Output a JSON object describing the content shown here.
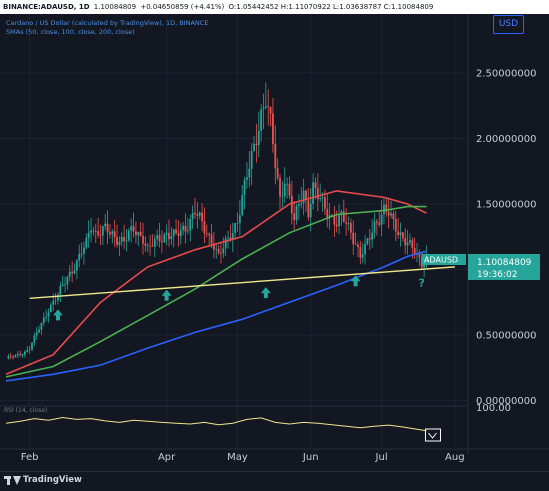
{
  "header": {
    "symbol": "BINANCE:ADAUSD, 1D",
    "last": "1.10084809",
    "change": "+0.04650859 (+4.41%)",
    "ohlc": "O:1.05442452 H:1.11070922 L:1.03638787 C:1.10084809",
    "title": "Cardano / US Dollar (calculated by TradingView), 1D, BINANCE",
    "indicator": "SMAs (50, close, 100, close, 200, close)"
  },
  "currency_button": "USD",
  "price_label": {
    "symbol": "ADAUSD",
    "value": "1.10084809",
    "countdown": "19:36:02"
  },
  "rsi_label": "RSI (14, close)",
  "rsi_top_tick": "100.00",
  "footer": {
    "brand": "TradingView"
  },
  "annotation": {
    "question": "?"
  },
  "colors": {
    "up": "#26a69a",
    "down": "#ef5350",
    "sma50": "#e84b4b",
    "sma100": "#4caf50",
    "sma200": "#2962ff",
    "trendline": "#f0e68c",
    "arrow": "#26a69a",
    "rsi": "#f0e68c"
  },
  "chart_data": {
    "type": "candlestick",
    "xlabel": "",
    "ylabel": "",
    "ylim": [
      -0.08,
      2.95
    ],
    "y_ticks": [
      0.0,
      0.5,
      1.0,
      1.5,
      2.0,
      2.5
    ],
    "y_tick_labels": [
      "0.00000000",
      "0.50000000",
      "1.00000000",
      "1.50000000",
      "2.00000000",
      "2.50000000"
    ],
    "x_ticks": [
      {
        "label": "Feb",
        "day": 10
      },
      {
        "label": "Apr",
        "day": 68
      },
      {
        "label": "May",
        "day": 98
      },
      {
        "label": "Jun",
        "day": 129
      },
      {
        "label": "Jul",
        "day": 159
      },
      {
        "label": "Aug",
        "day": 190
      }
    ],
    "close_path": [
      [
        0,
        0.32
      ],
      [
        4,
        0.34
      ],
      [
        8,
        0.37
      ],
      [
        10,
        0.4
      ],
      [
        14,
        0.55
      ],
      [
        18,
        0.7
      ],
      [
        22,
        0.8
      ],
      [
        26,
        0.95
      ],
      [
        30,
        1.05
      ],
      [
        34,
        1.2
      ],
      [
        36,
        1.35
      ],
      [
        38,
        1.28
      ],
      [
        42,
        1.3
      ],
      [
        46,
        1.25
      ],
      [
        50,
        1.22
      ],
      [
        54,
        1.3
      ],
      [
        58,
        1.25
      ],
      [
        60,
        1.15
      ],
      [
        64,
        1.22
      ],
      [
        68,
        1.28
      ],
      [
        72,
        1.25
      ],
      [
        76,
        1.32
      ],
      [
        80,
        1.45
      ],
      [
        84,
        1.3
      ],
      [
        88,
        1.2
      ],
      [
        90,
        1.1
      ],
      [
        94,
        1.22
      ],
      [
        96,
        1.3
      ],
      [
        98,
        1.38
      ],
      [
        100,
        1.55
      ],
      [
        104,
        1.85
      ],
      [
        108,
        2.2
      ],
      [
        110,
        2.3
      ],
      [
        112,
        2.1
      ],
      [
        114,
        1.8
      ],
      [
        116,
        1.55
      ],
      [
        118,
        1.7
      ],
      [
        120,
        1.55
      ],
      [
        122,
        1.35
      ],
      [
        124,
        1.5
      ],
      [
        126,
        1.6
      ],
      [
        128,
        1.45
      ],
      [
        130,
        1.62
      ],
      [
        132,
        1.55
      ],
      [
        134,
        1.5
      ],
      [
        136,
        1.45
      ],
      [
        138,
        1.4
      ],
      [
        140,
        1.35
      ],
      [
        142,
        1.4
      ],
      [
        144,
        1.35
      ],
      [
        146,
        1.3
      ],
      [
        148,
        1.2
      ],
      [
        150,
        1.1
      ],
      [
        152,
        1.15
      ],
      [
        154,
        1.25
      ],
      [
        156,
        1.35
      ],
      [
        158,
        1.4
      ],
      [
        160,
        1.45
      ],
      [
        162,
        1.42
      ],
      [
        164,
        1.35
      ],
      [
        166,
        1.3
      ],
      [
        168,
        1.25
      ],
      [
        170,
        1.2
      ],
      [
        172,
        1.15
      ],
      [
        174,
        1.1
      ],
      [
        176,
        1.05
      ],
      [
        178,
        1.1
      ]
    ],
    "series": [
      {
        "name": "SMA 50",
        "values": [
          [
            0,
            0.2
          ],
          [
            20,
            0.35
          ],
          [
            40,
            0.75
          ],
          [
            60,
            1.02
          ],
          [
            80,
            1.15
          ],
          [
            100,
            1.25
          ],
          [
            120,
            1.5
          ],
          [
            140,
            1.6
          ],
          [
            160,
            1.55
          ],
          [
            170,
            1.5
          ],
          [
            178,
            1.43
          ]
        ]
      },
      {
        "name": "SMA 100",
        "values": [
          [
            0,
            0.18
          ],
          [
            20,
            0.26
          ],
          [
            40,
            0.45
          ],
          [
            60,
            0.65
          ],
          [
            80,
            0.85
          ],
          [
            100,
            1.08
          ],
          [
            120,
            1.28
          ],
          [
            140,
            1.42
          ],
          [
            160,
            1.45
          ],
          [
            170,
            1.48
          ],
          [
            178,
            1.48
          ]
        ]
      },
      {
        "name": "SMA 200",
        "values": [
          [
            0,
            0.15
          ],
          [
            20,
            0.2
          ],
          [
            40,
            0.27
          ],
          [
            60,
            0.4
          ],
          [
            80,
            0.52
          ],
          [
            100,
            0.62
          ],
          [
            120,
            0.75
          ],
          [
            140,
            0.88
          ],
          [
            160,
            1.02
          ],
          [
            170,
            1.1
          ],
          [
            178,
            1.14
          ]
        ]
      }
    ],
    "trendline": [
      [
        10,
        0.78
      ],
      [
        190,
        1.02
      ]
    ],
    "markers": [
      {
        "label": "arrow-up",
        "day": 22,
        "value": 0.65
      },
      {
        "label": "arrow-up",
        "day": 68,
        "value": 0.8
      },
      {
        "label": "arrow-up",
        "day": 110,
        "value": 0.82
      },
      {
        "label": "arrow-up",
        "day": 148,
        "value": 0.91
      },
      {
        "label": "question",
        "day": 176,
        "value": 0.9
      }
    ],
    "rsi": {
      "ylim": [
        0,
        100
      ],
      "top_tick": 100,
      "values": [
        [
          0,
          60
        ],
        [
          6,
          65
        ],
        [
          12,
          72
        ],
        [
          18,
          68
        ],
        [
          24,
          75
        ],
        [
          30,
          70
        ],
        [
          36,
          72
        ],
        [
          42,
          66
        ],
        [
          48,
          62
        ],
        [
          54,
          68
        ],
        [
          60,
          65
        ],
        [
          66,
          62
        ],
        [
          72,
          60
        ],
        [
          78,
          58
        ],
        [
          84,
          62
        ],
        [
          90,
          56
        ],
        [
          96,
          60
        ],
        [
          102,
          70
        ],
        [
          108,
          74
        ],
        [
          114,
          62
        ],
        [
          120,
          58
        ],
        [
          126,
          62
        ],
        [
          132,
          60
        ],
        [
          138,
          56
        ],
        [
          144,
          52
        ],
        [
          150,
          48
        ],
        [
          156,
          52
        ],
        [
          162,
          55
        ],
        [
          168,
          50
        ],
        [
          174,
          44
        ],
        [
          178,
          40
        ]
      ]
    }
  }
}
